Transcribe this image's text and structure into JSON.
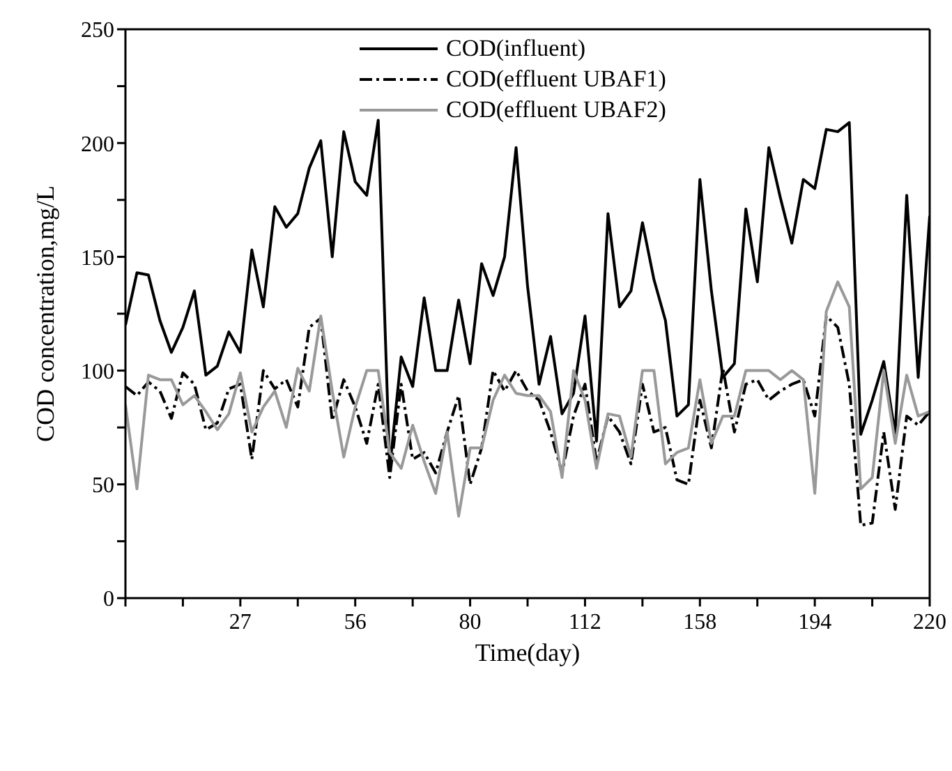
{
  "chart_data": {
    "type": "line",
    "xlabel": "Time(day)",
    "ylabel": "COD concentration,mg/L",
    "categories": [
      null,
      null,
      null,
      null,
      null,
      null,
      null,
      null,
      null,
      null,
      "27",
      null,
      null,
      null,
      null,
      null,
      null,
      null,
      null,
      null,
      "56",
      null,
      null,
      null,
      null,
      null,
      null,
      null,
      null,
      null,
      "80",
      null,
      null,
      null,
      null,
      null,
      null,
      null,
      null,
      null,
      "112",
      null,
      null,
      null,
      null,
      null,
      null,
      null,
      null,
      null,
      "158",
      null,
      null,
      null,
      null,
      null,
      null,
      null,
      null,
      null,
      "194",
      null,
      null,
      null,
      null,
      null,
      null,
      null,
      null,
      null,
      "220"
    ],
    "ylim": [
      0,
      250
    ],
    "yticks": [
      0,
      {
        "value": 25,
        "label": null
      },
      50,
      {
        "value": 75,
        "label": null
      },
      100,
      {
        "value": 125,
        "label": null
      },
      150,
      {
        "value": 175,
        "label": null
      },
      200,
      {
        "value": 225,
        "label": null
      },
      250
    ],
    "legend": "top",
    "marker": "none",
    "series": [
      {
        "name": "COD(influent)",
        "color": "#000000",
        "line_style": "solid",
        "values": [
          120,
          143,
          142,
          122,
          108,
          119,
          135,
          98,
          102,
          117,
          108,
          153,
          128,
          172,
          163,
          169,
          189,
          201,
          150,
          205,
          183,
          177,
          210,
          57,
          106,
          93,
          132,
          100,
          100,
          131,
          103,
          147,
          133,
          150,
          198,
          137,
          94,
          115,
          81,
          90,
          124,
          69,
          169,
          128,
          135,
          165,
          140,
          122,
          80,
          85,
          184,
          135,
          97,
          103,
          171,
          139,
          198,
          176,
          156,
          184,
          180,
          206,
          205,
          209,
          72,
          87,
          104,
          72,
          177,
          97,
          168
        ]
      },
      {
        "name": "COD(effluent UBAF1)",
        "color": "#000000",
        "line_style": "dashed",
        "values": [
          93,
          89,
          95,
          91,
          79,
          99,
          94,
          74,
          77,
          92,
          94,
          61,
          100,
          92,
          96,
          84,
          119,
          123,
          78,
          96,
          84,
          68,
          94,
          53,
          94,
          61,
          64,
          55,
          73,
          89,
          50,
          66,
          100,
          91,
          100,
          91,
          87,
          73,
          55,
          80,
          94,
          60,
          80,
          73,
          59,
          94,
          73,
          75,
          52,
          50,
          87,
          66,
          101,
          73,
          94,
          96,
          87,
          91,
          94,
          96,
          80,
          124,
          119,
          94,
          32,
          33,
          73,
          39,
          80,
          76,
          82
        ]
      },
      {
        "name": "COD(effluent UBAF2)",
        "color": "#999999",
        "line_style": "solid",
        "values": [
          85,
          48,
          98,
          96,
          96,
          85,
          89,
          82,
          74,
          81,
          99,
          73,
          84,
          91,
          75,
          101,
          91,
          124,
          91,
          62,
          84,
          100,
          100,
          64,
          57,
          76,
          60,
          46,
          73,
          36,
          66,
          66,
          87,
          98,
          90,
          89,
          89,
          82,
          53,
          100,
          87,
          57,
          81,
          80,
          62,
          100,
          100,
          59,
          64,
          66,
          96,
          68,
          80,
          80,
          100,
          100,
          100,
          96,
          100,
          96,
          46,
          126,
          139,
          128,
          48,
          53,
          100,
          68,
          98,
          80,
          82
        ]
      }
    ]
  }
}
